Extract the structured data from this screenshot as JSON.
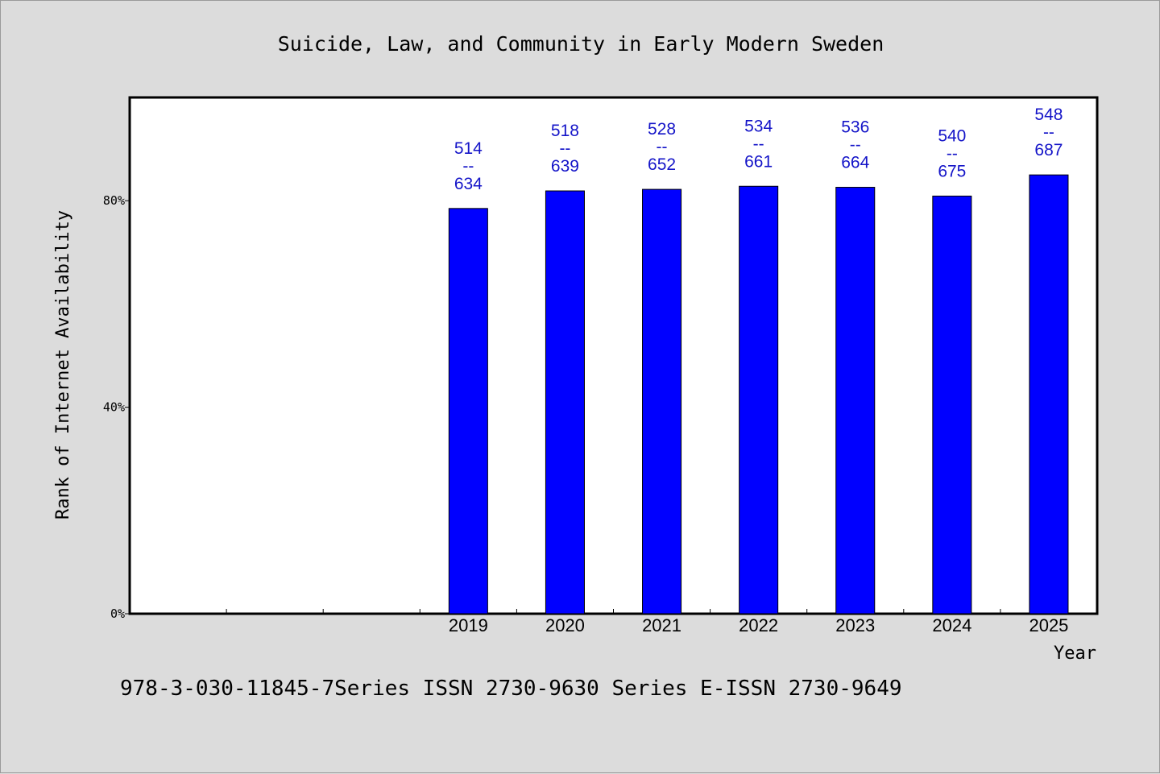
{
  "chart_data": {
    "type": "bar",
    "title": "Suicide, Law, and Community in Early Modern Sweden",
    "xlabel": "Year",
    "ylabel": "Rank of Internet Availability",
    "x_slots": 10,
    "categories": [
      "2019",
      "2020",
      "2021",
      "2022",
      "2023",
      "2024",
      "2025"
    ],
    "category_slot_start": 3,
    "series": [
      {
        "values": [
          78.5,
          81.9,
          82.2,
          82.8,
          82.6,
          80.9,
          85.0
        ],
        "labels": [
          [
            "514",
            "--",
            "634"
          ],
          [
            "518",
            "--",
            "639"
          ],
          [
            "528",
            "--",
            "652"
          ],
          [
            "534",
            "--",
            "661"
          ],
          [
            "536",
            "--",
            "664"
          ],
          [
            "540",
            "--",
            "675"
          ],
          [
            "548",
            "--",
            "687"
          ]
        ]
      }
    ],
    "ylim": [
      0,
      100
    ],
    "yticks": [
      0,
      40,
      80
    ],
    "ytick_labels": [
      "0%",
      "40%",
      "80%"
    ],
    "grid": false,
    "bar_color": "#0000ff",
    "label_color": "#1414c8"
  },
  "footer": "978-3-030-11845-7Series ISSN 2730-9630 Series E-ISSN 2730-9649"
}
